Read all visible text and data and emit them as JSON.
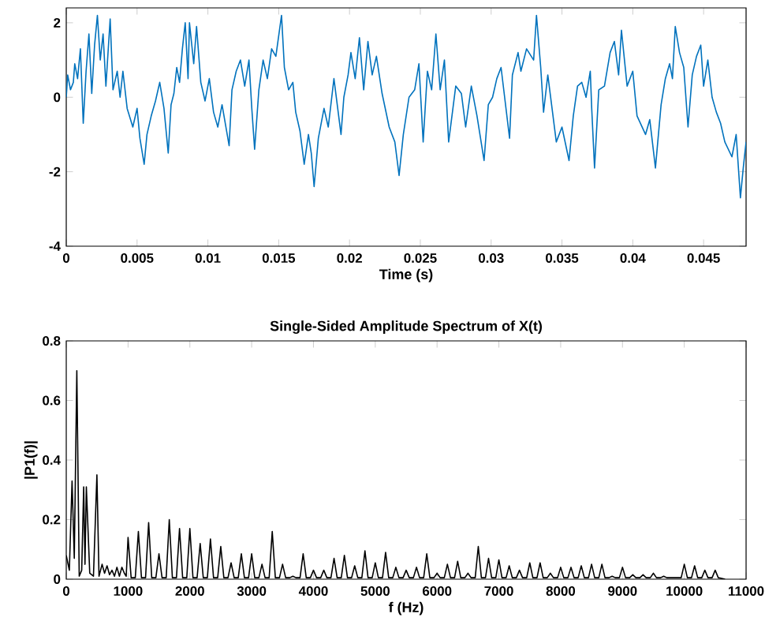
{
  "chart_data": [
    {
      "type": "line",
      "xlabel": "Time (s)",
      "xlim": [
        0,
        0.048
      ],
      "ylim": [
        -4,
        2.4
      ],
      "xticks": [
        0,
        0.005,
        0.01,
        0.015,
        0.02,
        0.025,
        0.03,
        0.035,
        0.04,
        0.045
      ],
      "yticks": [
        -4,
        -2,
        0,
        2
      ],
      "x": [
        0,
        0.0001,
        0.0003,
        0.0005,
        0.0006,
        0.0008,
        0.001,
        0.0012,
        0.0014,
        0.0016,
        0.0018,
        0.002,
        0.0022,
        0.0024,
        0.0026,
        0.0028,
        0.0031,
        0.0033,
        0.0036,
        0.0038,
        0.004,
        0.0043,
        0.0047,
        0.005,
        0.0052,
        0.0055,
        0.0057,
        0.006,
        0.0063,
        0.0066,
        0.0069,
        0.0072,
        0.0074,
        0.0076,
        0.0078,
        0.008,
        0.0082,
        0.0084,
        0.0086,
        0.0087,
        0.009,
        0.0092,
        0.0095,
        0.0098,
        0.0101,
        0.0104,
        0.0107,
        0.011,
        0.0115,
        0.0117,
        0.012,
        0.0123,
        0.0126,
        0.0129,
        0.0131,
        0.0133,
        0.0136,
        0.0139,
        0.0142,
        0.0145,
        0.0148,
        0.0152,
        0.0154,
        0.0157,
        0.016,
        0.0162,
        0.0165,
        0.0168,
        0.0171,
        0.0173,
        0.0175,
        0.0178,
        0.0182,
        0.0185,
        0.0189,
        0.0194,
        0.0196,
        0.0199,
        0.0201,
        0.0204,
        0.0207,
        0.021,
        0.0213,
        0.0216,
        0.0219,
        0.0223,
        0.0228,
        0.0232,
        0.0235,
        0.0238,
        0.0242,
        0.0246,
        0.0249,
        0.0252,
        0.0255,
        0.0258,
        0.0261,
        0.0264,
        0.0267,
        0.027,
        0.0275,
        0.0279,
        0.0282,
        0.0286,
        0.029,
        0.0295,
        0.0298,
        0.0301,
        0.0304,
        0.0307,
        0.0313,
        0.0315,
        0.0319,
        0.0321,
        0.0323,
        0.0325,
        0.0327,
        0.033,
        0.0332,
        0.0335,
        0.0337,
        0.034,
        0.0343,
        0.0346,
        0.035,
        0.0355,
        0.0358,
        0.0361,
        0.0364,
        0.0367,
        0.037,
        0.0371,
        0.0373,
        0.0376,
        0.038,
        0.0384,
        0.0387,
        0.039,
        0.0392,
        0.0396,
        0.04,
        0.0403,
        0.0409,
        0.0412,
        0.0416,
        0.042,
        0.0423,
        0.0426,
        0.0428,
        0.043,
        0.0433,
        0.0436,
        0.0439,
        0.0442,
        0.0445,
        0.0448,
        0.045,
        0.0453,
        0.0456,
        0.0459,
        0.0462,
        0.0465,
        0.047,
        0.0473,
        0.0476,
        0.0478,
        0.048
      ],
      "series": [
        {
          "color": "#0072bd",
          "values": [
            0.0,
            0.6,
            0.2,
            0.4,
            0.9,
            0.5,
            1.3,
            -0.7,
            0.7,
            1.7,
            0.1,
            1.4,
            2.2,
            1.0,
            1.7,
            0.3,
            2.1,
            0.2,
            0.7,
            0.0,
            0.7,
            -0.3,
            -0.8,
            -0.3,
            -1.1,
            -1.8,
            -1.0,
            -0.5,
            -0.1,
            0.4,
            -0.3,
            -1.5,
            -0.2,
            0.1,
            0.8,
            0.4,
            1.3,
            2.0,
            0.5,
            2.0,
            0.9,
            1.9,
            0.4,
            -0.1,
            0.5,
            -0.4,
            -0.8,
            -0.2,
            -1.3,
            0.2,
            0.7,
            1.0,
            0.3,
            1.0,
            -0.3,
            -1.4,
            0.2,
            1.0,
            0.5,
            1.3,
            1.1,
            2.2,
            0.8,
            0.2,
            0.4,
            -0.4,
            -0.9,
            -1.8,
            -1.0,
            -1.5,
            -2.4,
            -1.1,
            -0.3,
            -0.8,
            0.5,
            -1.0,
            0.0,
            0.6,
            1.2,
            0.5,
            1.6,
            0.2,
            1.5,
            0.6,
            1.1,
            0.1,
            -0.8,
            -1.2,
            -2.1,
            -1.0,
            0.0,
            0.2,
            0.9,
            -1.2,
            0.7,
            0.2,
            1.7,
            0.2,
            1.0,
            -1.2,
            0.3,
            0.1,
            -0.8,
            0.3,
            -0.5,
            -1.7,
            -0.2,
            0.0,
            0.5,
            0.8,
            -1.1,
            0.6,
            1.2,
            0.7,
            null,
            1.3,
            null,
            1.0,
            2.2,
            0.8,
            -0.4,
            0.6,
            -0.3,
            -1.2,
            -0.8,
            -1.7,
            -0.5,
            0.3,
            0.4,
            0.0,
            0.7,
            -0.3,
            -1.9,
            0.2,
            0.3,
            1.2,
            1.5,
            0.6,
            1.8,
            0.3,
            0.7,
            -0.5,
            -1.0,
            -0.6,
            -1.9,
            -0.2,
            0.5,
            0.9,
            0.5,
            1.9,
            1.2,
            0.8,
            -0.8,
            0.6,
            1.1,
            1.4,
            0.3,
            1.0,
            0.0,
            -0.4,
            -0.7,
            -1.2,
            -1.6,
            -1.0,
            -2.7,
            -1.9,
            -1.2
          ]
        }
      ]
    },
    {
      "type": "line",
      "title": "Single-Sided Amplitude Spectrum of X(t)",
      "xlabel": "f (Hz)",
      "ylabel": "|P1(f)|",
      "xlim": [
        0,
        11000
      ],
      "ylim": [
        0,
        0.8
      ],
      "xticks": [
        0,
        1000,
        2000,
        3000,
        4000,
        5000,
        6000,
        7000,
        8000,
        9000,
        10000,
        11000
      ],
      "yticks": [
        0,
        0.2,
        0.4,
        0.6,
        0.8
      ],
      "x": [
        0,
        50,
        94,
        130,
        171,
        210,
        250,
        282,
        303,
        325,
        380,
        440,
        496,
        530,
        580,
        620,
        660,
        700,
        740,
        780,
        820,
        860,
        900,
        940,
        970,
        1000,
        1050,
        1117,
        1167,
        1217,
        1283,
        1333,
        1383,
        1450,
        1500,
        1550,
        1617,
        1667,
        1717,
        1783,
        1833,
        1883,
        1950,
        2000,
        2050,
        2117,
        2167,
        2217,
        2283,
        2333,
        2383,
        2450,
        2500,
        2550,
        2617,
        2667,
        2717,
        2783,
        2833,
        2883,
        2950,
        3000,
        3050,
        3117,
        3167,
        3217,
        3283,
        3333,
        3383,
        3450,
        3500,
        3550,
        3617,
        3667,
        3717,
        3783,
        3833,
        3883,
        3950,
        4000,
        4050,
        4117,
        4167,
        4217,
        4283,
        4333,
        4383,
        4450,
        4500,
        4550,
        4617,
        4667,
        4717,
        4783,
        4833,
        4883,
        4950,
        5000,
        5050,
        5117,
        5167,
        5217,
        5283,
        5333,
        5383,
        5450,
        5500,
        5550,
        5617,
        5667,
        5717,
        5783,
        5833,
        5883,
        5950,
        6000,
        6050,
        6117,
        6167,
        6217,
        6283,
        6333,
        6383,
        6450,
        6500,
        6550,
        6617,
        6667,
        6717,
        6783,
        6833,
        6883,
        6950,
        7000,
        7050,
        7117,
        7167,
        7217,
        7283,
        7333,
        7383,
        7450,
        7500,
        7550,
        7617,
        7667,
        7717,
        7783,
        7833,
        7883,
        7950,
        8000,
        8050,
        8117,
        8167,
        8217,
        8283,
        8333,
        8383,
        8450,
        8500,
        8550,
        8617,
        8667,
        8717,
        8783,
        8833,
        8883,
        8950,
        9000,
        9050,
        9117,
        9167,
        9217,
        9283,
        9333,
        9383,
        9450,
        9500,
        9550,
        9617,
        9667,
        9717,
        9950,
        10000,
        10050,
        10117,
        10167,
        10217,
        10283,
        10333,
        10383,
        10450,
        10500,
        10550,
        10660
      ],
      "series": [
        {
          "color": "#000000",
          "values": [
            0.08,
            0.03,
            0.33,
            0.07,
            0.7,
            0.01,
            0.03,
            0.31,
            0.05,
            0.31,
            0.02,
            0.01,
            0.35,
            0.01,
            0.05,
            0.02,
            0.045,
            0.015,
            0.03,
            0.01,
            0.04,
            0.01,
            0.04,
            0.02,
            0.01,
            0.14,
            0.005,
            0.005,
            0.16,
            0.005,
            0.005,
            0.19,
            0.005,
            0.005,
            0.085,
            0.005,
            0.005,
            0.2,
            0.005,
            0.005,
            0.17,
            0.005,
            0.005,
            0.17,
            0.005,
            0.005,
            0.12,
            0.005,
            0.005,
            0.135,
            0.005,
            0.005,
            0.11,
            0.005,
            0.005,
            0.055,
            0.005,
            0.005,
            0.085,
            0.005,
            0.005,
            0.085,
            0.005,
            0.005,
            0.05,
            0.005,
            0.005,
            0.16,
            0.005,
            0.005,
            0.05,
            0.005,
            0.005,
            0.01,
            0.005,
            0.005,
            0.085,
            0.005,
            0.005,
            0.03,
            0.005,
            0.005,
            0.03,
            0.005,
            0.005,
            0.07,
            0.005,
            0.005,
            0.08,
            0.005,
            0.005,
            0.045,
            0.005,
            0.005,
            0.095,
            0.005,
            0.005,
            0.055,
            0.005,
            0.005,
            0.09,
            0.005,
            0.005,
            0.04,
            0.005,
            0.005,
            0.03,
            0.005,
            0.005,
            0.04,
            0.005,
            0.005,
            0.085,
            0.005,
            0.005,
            0.02,
            0.005,
            0.005,
            0.05,
            0.005,
            0.005,
            0.06,
            0.005,
            0.005,
            0.02,
            0.005,
            0.005,
            0.11,
            0.005,
            0.005,
            0.07,
            0.005,
            0.005,
            0.065,
            0.005,
            0.005,
            0.045,
            0.005,
            0.005,
            0.03,
            0.005,
            0.005,
            0.055,
            0.005,
            0.005,
            0.055,
            0.005,
            0.005,
            0.02,
            0.005,
            0.005,
            0.04,
            0.005,
            0.005,
            0.04,
            0.005,
            0.005,
            0.045,
            0.005,
            0.005,
            0.05,
            0.005,
            0.005,
            0.05,
            0.005,
            0.005,
            0.01,
            0.005,
            0.005,
            0.04,
            0.005,
            0.005,
            0.015,
            0.005,
            0.005,
            0.015,
            0.005,
            0.005,
            0.02,
            0.005,
            0.005,
            0.01,
            0.005,
            0.005,
            0.05,
            0.005,
            0.005,
            0.045,
            0.005,
            0.005,
            0.03,
            0.005,
            0.005,
            0.03,
            0.005,
            0.0
          ]
        }
      ]
    }
  ]
}
